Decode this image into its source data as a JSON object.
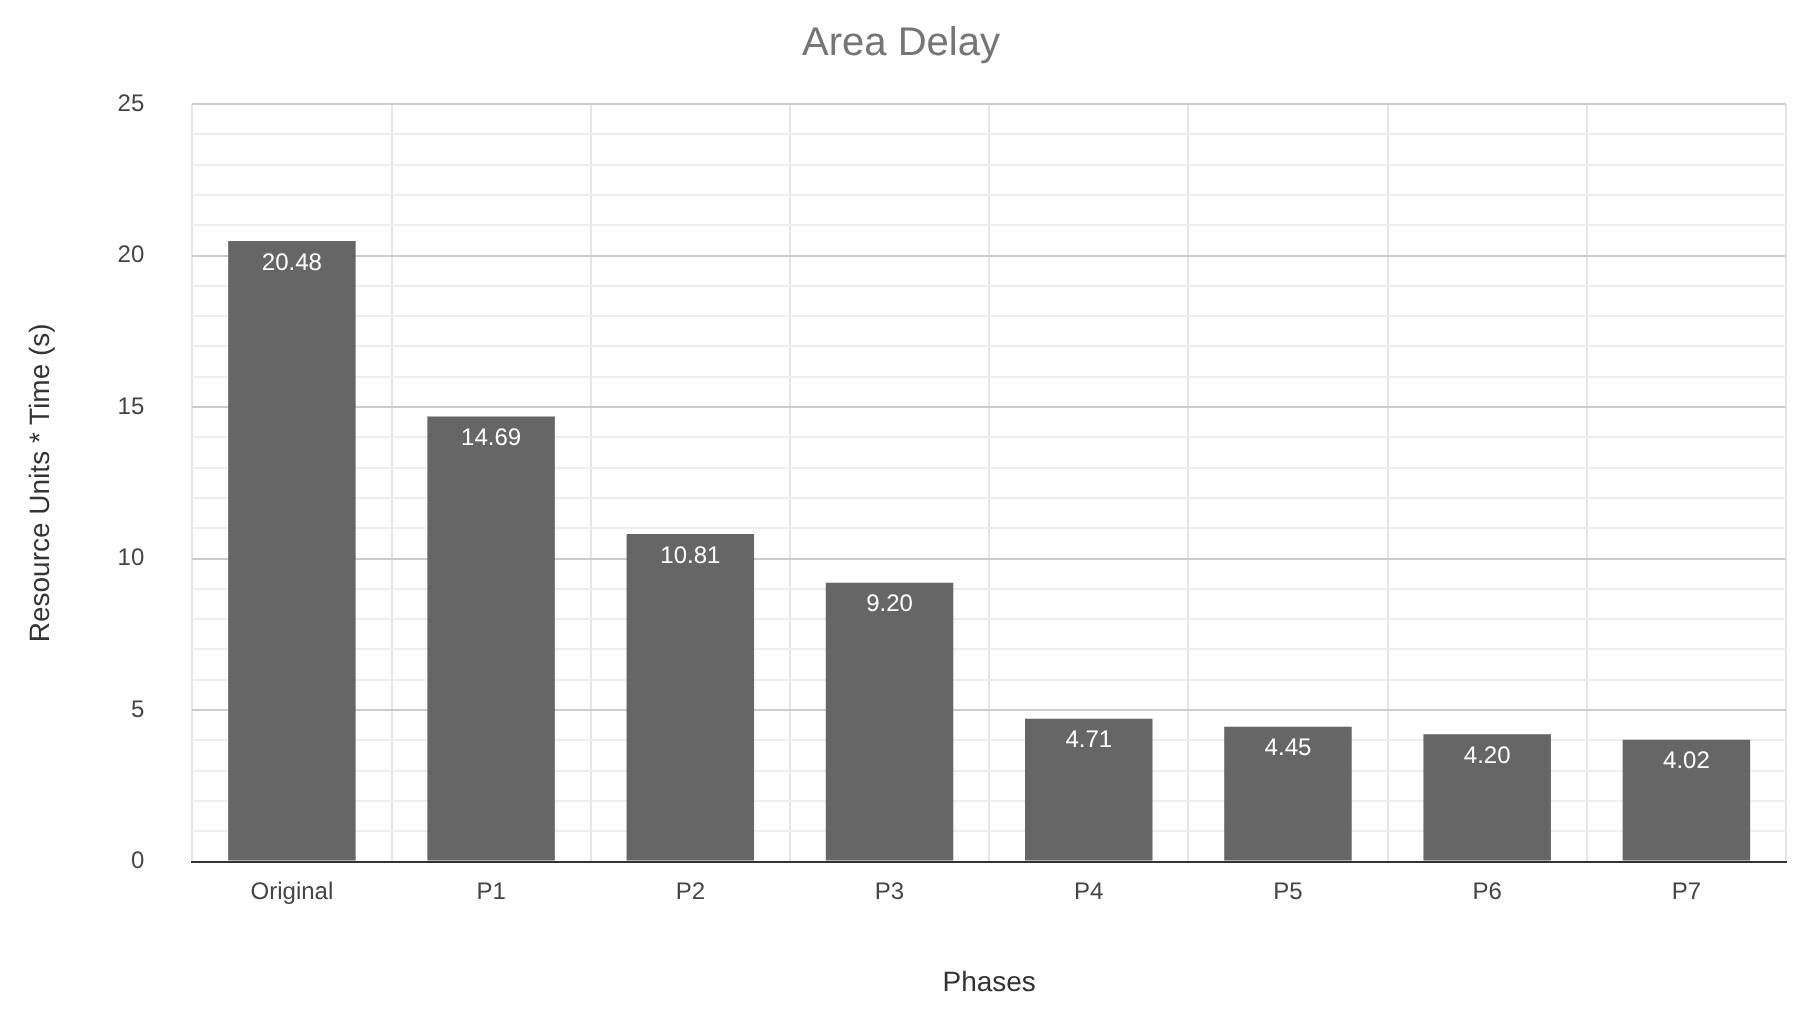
{
  "chart_data": {
    "type": "bar",
    "title": "Area Delay",
    "xlabel": "Phases",
    "ylabel": "Resource Units * Time (s)",
    "categories": [
      "Original",
      "P1",
      "P2",
      "P3",
      "P4",
      "P5",
      "P6",
      "P7"
    ],
    "values": [
      20.48,
      14.69,
      10.81,
      9.2,
      4.71,
      4.45,
      4.2,
      4.02
    ],
    "value_labels": [
      "20.48",
      "14.69",
      "10.81",
      "9.20",
      "4.71",
      "4.45",
      "4.20",
      "4.02"
    ],
    "color": "#666666",
    "ylim": [
      0,
      25
    ],
    "yticks": [
      0,
      {
        "value": 1,
        "label": null
      },
      {
        "value": 2,
        "label": null
      },
      {
        "value": 3,
        "label": null
      },
      {
        "value": 4,
        "label": null
      },
      5,
      {
        "value": 6,
        "label": null
      },
      {
        "value": 7,
        "label": null
      },
      {
        "value": 8,
        "label": null
      },
      {
        "value": 9,
        "label": null
      },
      10,
      {
        "value": 11,
        "label": null
      },
      {
        "value": 12,
        "label": null
      },
      {
        "value": 13,
        "label": null
      },
      {
        "value": 14,
        "label": null
      },
      15,
      {
        "value": 16,
        "label": null
      },
      {
        "value": 17,
        "label": null
      },
      {
        "value": 18,
        "label": null
      },
      {
        "value": 19,
        "label": null
      },
      20,
      {
        "value": 21,
        "label": null
      },
      {
        "value": 22,
        "label": null
      },
      {
        "value": 23,
        "label": null
      },
      {
        "value": 24,
        "label": null
      },
      25
    ],
    "grid": true
  }
}
